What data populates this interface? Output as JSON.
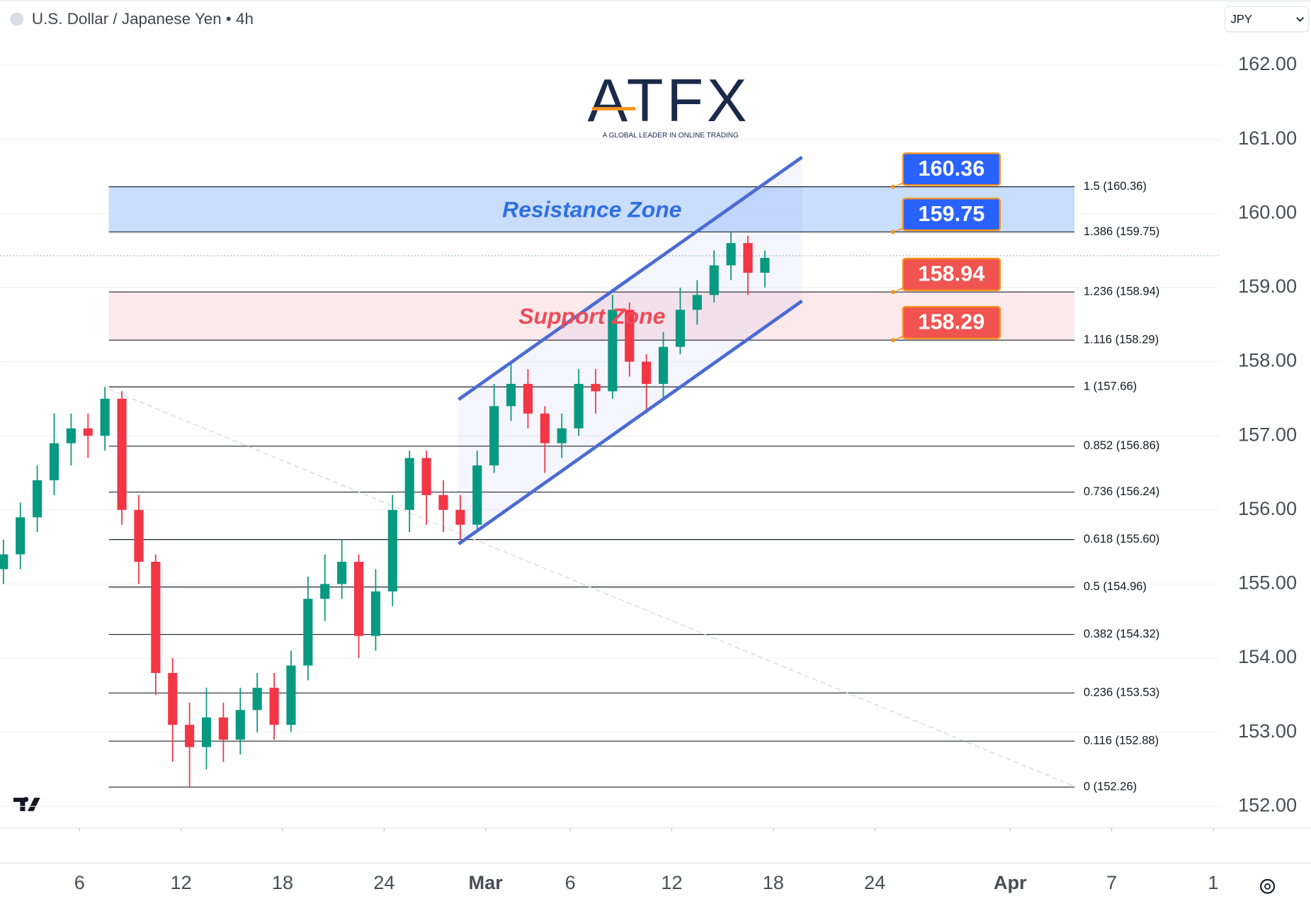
{
  "header": {
    "title": "U.S. Dollar / Japanese Yen • 4h",
    "currency": "JPY"
  },
  "logo": {
    "name": "ATFX",
    "tagline": "A GLOBAL LEADER IN ONLINE TRADING"
  },
  "chart_data": {
    "type": "candlestick",
    "x": [
      32.5,
      33.5,
      34.5,
      35.5,
      36.5,
      37.5,
      38.5,
      39.5,
      40.5,
      41.5,
      42.5,
      43.5,
      44.5,
      45.5,
      46.5,
      47.5,
      48.5,
      49.5,
      50.5,
      51.5,
      52.5,
      53.5,
      54.5,
      55.5,
      56.5,
      57.5,
      58.5,
      59.5,
      60.5,
      61.5,
      62.5,
      63.5,
      64.5,
      65.5,
      66.5,
      67.5,
      68.5,
      69.5,
      70.5,
      71.5,
      72.5,
      73.5,
      74.5,
      75.5,
      76.5,
      77.5
    ],
    "open": [
      155.2,
      155.4,
      155.9,
      156.4,
      156.9,
      157.1,
      157.0,
      157.5,
      156.0,
      155.3,
      153.8,
      153.1,
      152.8,
      153.2,
      152.9,
      153.3,
      153.6,
      153.1,
      153.9,
      154.8,
      155.0,
      155.3,
      154.3,
      154.9,
      156.0,
      156.7,
      156.2,
      156.0,
      155.8,
      156.6,
      157.4,
      157.7,
      157.3,
      156.9,
      157.1,
      157.7,
      157.6,
      158.7,
      158.0,
      157.7,
      158.2,
      158.7,
      158.9,
      159.3,
      159.6,
      159.2
    ],
    "high": [
      155.6,
      156.1,
      156.6,
      157.3,
      157.3,
      157.3,
      157.66,
      157.6,
      156.2,
      155.4,
      154.0,
      153.4,
      153.6,
      153.4,
      153.6,
      153.8,
      153.8,
      154.1,
      155.1,
      155.4,
      155.6,
      155.4,
      155.2,
      156.2,
      156.8,
      156.8,
      156.4,
      156.2,
      156.8,
      157.7,
      158.0,
      157.9,
      157.4,
      157.3,
      157.9,
      157.9,
      158.9,
      158.8,
      158.1,
      158.4,
      159.0,
      159.1,
      159.5,
      159.75,
      159.7,
      159.5
    ],
    "low": [
      155.0,
      155.2,
      155.7,
      156.2,
      156.6,
      156.7,
      156.8,
      155.8,
      155.0,
      153.5,
      152.6,
      152.26,
      152.5,
      152.6,
      152.7,
      153.0,
      152.9,
      153.0,
      153.7,
      154.5,
      154.8,
      154.0,
      154.1,
      154.7,
      155.7,
      155.8,
      155.7,
      155.6,
      155.7,
      156.5,
      157.2,
      157.1,
      156.5,
      156.7,
      157.0,
      157.3,
      157.5,
      157.8,
      157.3,
      157.5,
      158.1,
      158.5,
      158.8,
      159.1,
      158.9,
      159.0
    ],
    "close": [
      155.4,
      155.9,
      156.4,
      156.9,
      157.1,
      157.0,
      157.5,
      156.0,
      155.3,
      153.8,
      153.1,
      152.8,
      153.2,
      152.9,
      153.3,
      153.6,
      153.1,
      153.9,
      154.8,
      155.0,
      155.3,
      154.3,
      154.9,
      156.0,
      156.7,
      156.2,
      156.0,
      155.8,
      156.6,
      157.4,
      157.7,
      157.3,
      156.9,
      157.1,
      157.7,
      157.6,
      158.7,
      158.0,
      157.7,
      158.2,
      158.7,
      158.9,
      159.3,
      159.6,
      159.2,
      159.4
    ],
    "up_color": "#089981",
    "down_color": "#f23645",
    "xlim": [
      32.3,
      104.44
    ],
    "ylim": [
      151.71,
      162.88
    ],
    "yticks": [
      {
        "value": 152,
        "label": "152.00"
      },
      {
        "value": 153,
        "label": "153.00"
      },
      {
        "value": 154,
        "label": "154.00"
      },
      {
        "value": 155,
        "label": "155.00"
      },
      {
        "value": 156,
        "label": "156.00"
      },
      {
        "value": 157,
        "label": "157.00"
      },
      {
        "value": 158,
        "label": "158.00"
      },
      {
        "value": 159,
        "label": "159.00"
      },
      {
        "value": 160,
        "label": "160.00"
      },
      {
        "value": 161,
        "label": "161.00"
      },
      {
        "value": 162,
        "label": "162.00"
      }
    ],
    "xticks": [
      {
        "value": 37,
        "label": "6"
      },
      {
        "value": 43,
        "label": "12"
      },
      {
        "value": 49,
        "label": "18"
      },
      {
        "value": 55,
        "label": "24"
      },
      {
        "value": 61,
        "label": "Mar"
      },
      {
        "value": 66,
        "label": "6"
      },
      {
        "value": 72,
        "label": "12"
      },
      {
        "value": 78,
        "label": "18"
      },
      {
        "value": 84,
        "label": "24"
      },
      {
        "value": 92,
        "label": "Apr"
      },
      {
        "value": 98,
        "label": "7"
      },
      {
        "value": 104,
        "label": "1"
      }
    ],
    "last_price": 159.43,
    "fib_levels": {
      "x": [
        38.73,
        95.8
      ],
      "levels": [
        {
          "value": 160.36,
          "label": "1.5 (160.36)"
        },
        {
          "value": 159.75,
          "label": "1.386 (159.75)"
        },
        {
          "value": 158.94,
          "label": "1.236 (158.94)"
        },
        {
          "value": 158.29,
          "label": "1.116 (158.29)"
        },
        {
          "value": 157.66,
          "label": "1 (157.66)"
        },
        {
          "value": 156.86,
          "label": "0.852 (156.86)"
        },
        {
          "value": 156.24,
          "label": "0.736 (156.24)"
        },
        {
          "value": 155.6,
          "label": "0.618 (155.60)"
        },
        {
          "value": 154.96,
          "label": "0.5 (154.96)"
        },
        {
          "value": 154.32,
          "label": "0.382 (154.32)"
        },
        {
          "value": 153.53,
          "label": "0.236 (153.53)"
        },
        {
          "value": 152.88,
          "label": "0.116 (152.88)"
        },
        {
          "value": 152.26,
          "label": "0 (152.26)"
        }
      ]
    },
    "zones": [
      {
        "label": "Resistance Zone",
        "range": [
          159.75,
          160.36
        ],
        "color": "#bbd5fb",
        "text_color": "#2f6fe0"
      },
      {
        "label": "Support Zone",
        "range": [
          158.29,
          158.94
        ],
        "color": "#fbe3e6",
        "text_color": "#ef4a58"
      }
    ],
    "price_badges": [
      {
        "value": 160.36,
        "color": "#2962ff"
      },
      {
        "value": 159.75,
        "color": "#2962ff"
      },
      {
        "value": 158.94,
        "color": "#f05350"
      },
      {
        "value": 158.29,
        "color": "#f05350"
      }
    ],
    "channel": {
      "x": [
        59.4,
        79.7
      ],
      "upper": [
        157.49,
        160.76
      ],
      "lower": [
        155.54,
        158.82
      ],
      "color": "#4a6cd4"
    },
    "trendline": {
      "x": [
        38.73,
        95.8
      ],
      "y": [
        157.63,
        152.27
      ]
    }
  }
}
